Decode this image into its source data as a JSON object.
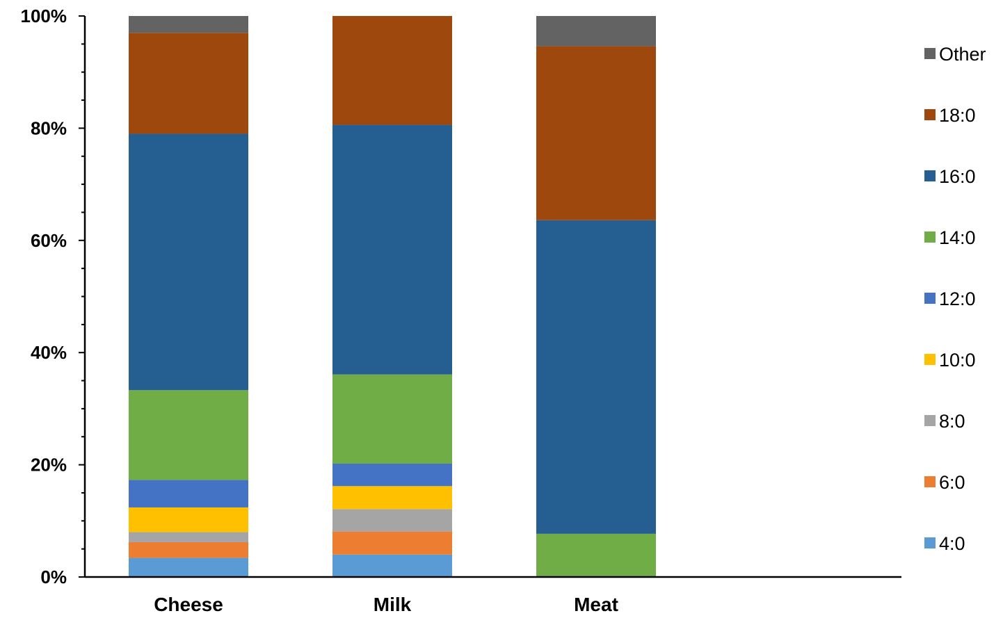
{
  "chart_data": {
    "type": "bar",
    "stacked": true,
    "percent_stacked": true,
    "categories": [
      "Cheese",
      "Milk",
      "Meat"
    ],
    "series": [
      {
        "name": "4:0",
        "color": "#5B9BD5",
        "values": [
          3.4,
          4.0,
          0.0
        ]
      },
      {
        "name": "6:0",
        "color": "#ED7D31",
        "values": [
          2.8,
          4.1,
          0.0
        ]
      },
      {
        "name": "8:0",
        "color": "#A5A5A5",
        "values": [
          1.8,
          4.0,
          0.0
        ]
      },
      {
        "name": "10:0",
        "color": "#FFC000",
        "values": [
          4.4,
          4.1,
          0.0
        ]
      },
      {
        "name": "12:0",
        "color": "#4472C4",
        "values": [
          4.9,
          4.0,
          0.0
        ]
      },
      {
        "name": "14:0",
        "color": "#70AD47",
        "values": [
          16.0,
          15.9,
          7.7
        ]
      },
      {
        "name": "16:0",
        "color": "#255E91",
        "values": [
          45.7,
          44.5,
          55.9
        ]
      },
      {
        "name": "18:0",
        "color": "#9E480E",
        "values": [
          18.0,
          19.4,
          31.0
        ]
      },
      {
        "name": "Other",
        "color": "#636363",
        "values": [
          3.0,
          0.0,
          5.4
        ]
      }
    ],
    "y_tick_labels": [
      "0%",
      "20%",
      "40%",
      "60%",
      "80%",
      "100%"
    ],
    "ylim": [
      0,
      100
    ],
    "legend_position": "right",
    "grid": false,
    "xlabel": "",
    "ylabel": ""
  }
}
